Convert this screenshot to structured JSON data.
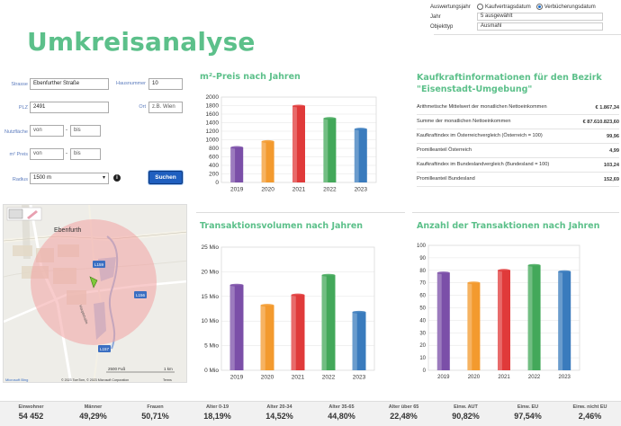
{
  "page_title": "Umkreisanalyse",
  "options": {
    "auswertungsjahr_label": "Auswertungsjahr",
    "radio_kaufvertrag": "Kaufvertragsdatum",
    "radio_verbuecherung": "Verbücherungsdatum",
    "jahr_label": "Jahr",
    "jahr_value": "5 ausgewählt",
    "objekttyp_label": "Objekttyp",
    "objekttyp_value": "Ausmahl"
  },
  "form": {
    "strasse_label": "Strasse",
    "strasse_value": "Ebenfurther Straße",
    "hausnummer_label": "Hausnummer",
    "hausnummer_value": "10",
    "plz_label": "PLZ",
    "plz_value": "2491",
    "ort_label": "Ort",
    "ort_placeholder": "z.B. Wien",
    "nutzflaeche_label": "Nutzfläche",
    "von_placeholder": "von",
    "bis_placeholder": "bis",
    "preis_label": "m² Preis",
    "radius_label": "Radius",
    "radius_value": "1500 m",
    "search_label": "Suchen"
  },
  "map": {
    "town_label": "Ebenfurth",
    "road_labels": [
      "L159",
      "L156",
      "L157"
    ],
    "street_label": "Hauptstraße",
    "scale_ft": "2500 Fuß",
    "scale_km": "1 km",
    "copyright": "© 2023 TomTom, © 2023 Microsoft Corporation",
    "terms": "Terms",
    "provider": "Microsoft Bing"
  },
  "kaufkraft": {
    "title_line1": "Kaufkraftinformationen für den Bezirk",
    "title_line2": "\"Eisenstadt-Umgebung\"",
    "rows": [
      {
        "label": "Arithmetische Mittelwert der monatlichen Nettoeinkommen",
        "value": "€ 1.867,34"
      },
      {
        "label": "Summe der monatlichen Nettoeinkommen",
        "value": "€ 87.610.823,60"
      },
      {
        "label": "Kaufkraftindex im Österreichvergleich (Österreich = 100)",
        "value": "99,96"
      },
      {
        "label": "Promilleanteil Österreich",
        "value": "4,99"
      },
      {
        "label": "Kaufkraftindex im Bundeslandvergleich (Bundesland = 100)",
        "value": "103,24"
      },
      {
        "label": "Promilleanteil Bundesland",
        "value": "152,69"
      }
    ]
  },
  "charts": {
    "preis": {
      "title": "m²-Preis nach Jahren",
      "chart_data": {
        "type": "bar",
        "categories": [
          "2019",
          "2020",
          "2021",
          "2022",
          "2023"
        ],
        "values": [
          820,
          960,
          1790,
          1500,
          1250
        ],
        "ylim": [
          0,
          2000
        ],
        "yticks": [
          0,
          200,
          400,
          600,
          800,
          1000,
          1200,
          1400,
          1600,
          1800,
          2000
        ],
        "ytick_labels": [
          "0",
          "200",
          "400",
          "600",
          "800",
          "1000",
          "1200",
          "1400",
          "1600",
          "1800",
          "2000"
        ],
        "colors": [
          "#7b4fa8",
          "#f39a2e",
          "#e03a3a",
          "#43a85a",
          "#3a7bbd"
        ]
      }
    },
    "volumen": {
      "title": "Transaktionsvolumen nach Jahren",
      "chart_data": {
        "type": "bar",
        "categories": [
          "2019",
          "2020",
          "2021",
          "2022",
          "2023"
        ],
        "values": [
          17.3,
          13.2,
          15.3,
          19.3,
          11.8
        ],
        "ylim": [
          0,
          25
        ],
        "yticks": [
          0,
          5,
          10,
          15,
          20,
          25
        ],
        "ytick_labels": [
          "0 Mio",
          "5 Mio",
          "10 Mio",
          "15 Mio",
          "20 Mio",
          "25 Mio"
        ],
        "colors": [
          "#7b4fa8",
          "#f39a2e",
          "#e03a3a",
          "#43a85a",
          "#3a7bbd"
        ]
      }
    },
    "anzahl": {
      "title": "Anzahl der Transaktionen nach Jahren",
      "chart_data": {
        "type": "bar",
        "categories": [
          "2019",
          "2020",
          "2021",
          "2022",
          "2023"
        ],
        "values": [
          78,
          70,
          80,
          84,
          79
        ],
        "ylim": [
          0,
          100
        ],
        "yticks": [
          0,
          10,
          20,
          30,
          40,
          50,
          60,
          70,
          80,
          90,
          100
        ],
        "ytick_labels": [
          "0",
          "10",
          "20",
          "30",
          "40",
          "50",
          "60",
          "70",
          "80",
          "90",
          "100"
        ],
        "colors": [
          "#7b4fa8",
          "#f39a2e",
          "#e03a3a",
          "#43a85a",
          "#3a7bbd"
        ]
      }
    }
  },
  "stats": [
    {
      "label": "Einwohner",
      "value": "54 452"
    },
    {
      "label": "Männer",
      "value": "49,29%"
    },
    {
      "label": "Frauen",
      "value": "50,71%"
    },
    {
      "label": "Alter 0-19",
      "value": "18,19%"
    },
    {
      "label": "Alter 20-34",
      "value": "14,52%"
    },
    {
      "label": "Alter 35-65",
      "value": "44,80%"
    },
    {
      "label": "Alter über 65",
      "value": "22,48%"
    },
    {
      "label": "Einw. AUT",
      "value": "90,82%"
    },
    {
      "label": "Einw. EU",
      "value": "97,54%"
    },
    {
      "label": "Einw. nicht EU",
      "value": "2,46%"
    }
  ]
}
